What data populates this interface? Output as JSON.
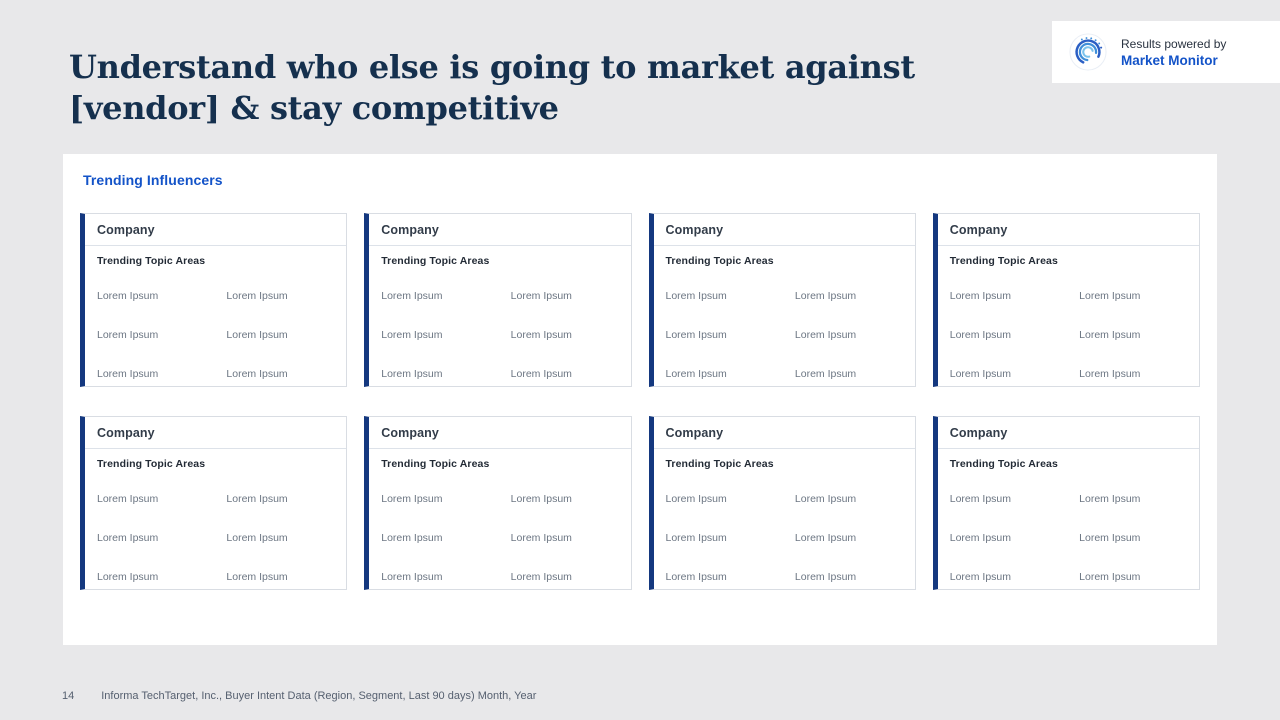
{
  "slide": {
    "title_lines": [
      "Understand who else is going to market against",
      "[vendor] & stay competitive"
    ],
    "footer": {
      "page_number": "14",
      "source": "Informa TechTarget, Inc., Buyer Intent Data (Region, Segment, Last 90 days) Month, Year"
    }
  },
  "badge": {
    "prefix": "Results powered by",
    "brand": "Market Monitor",
    "logo_icon": "market-monitor-orbit-icon"
  },
  "panel": {
    "heading": "Trending Influencers",
    "cards": [
      {
        "company": "Company",
        "section_label": "Trending Topic Areas",
        "topics": [
          "Lorem Ipsum",
          "Lorem Ipsum",
          "Lorem Ipsum",
          "Lorem Ipsum",
          "Lorem Ipsum",
          "Lorem Ipsum"
        ]
      },
      {
        "company": "Company",
        "section_label": "Trending Topic Areas",
        "topics": [
          "Lorem Ipsum",
          "Lorem Ipsum",
          "Lorem Ipsum",
          "Lorem Ipsum",
          "Lorem Ipsum",
          "Lorem Ipsum"
        ]
      },
      {
        "company": "Company",
        "section_label": "Trending Topic Areas",
        "topics": [
          "Lorem Ipsum",
          "Lorem Ipsum",
          "Lorem Ipsum",
          "Lorem Ipsum",
          "Lorem Ipsum",
          "Lorem Ipsum"
        ]
      },
      {
        "company": "Company",
        "section_label": "Trending Topic Areas",
        "topics": [
          "Lorem Ipsum",
          "Lorem Ipsum",
          "Lorem Ipsum",
          "Lorem Ipsum",
          "Lorem Ipsum",
          "Lorem Ipsum"
        ]
      },
      {
        "company": "Company",
        "section_label": "Trending Topic Areas",
        "topics": [
          "Lorem Ipsum",
          "Lorem Ipsum",
          "Lorem Ipsum",
          "Lorem Ipsum",
          "Lorem Ipsum",
          "Lorem Ipsum"
        ]
      },
      {
        "company": "Company",
        "section_label": "Trending Topic Areas",
        "topics": [
          "Lorem Ipsum",
          "Lorem Ipsum",
          "Lorem Ipsum",
          "Lorem Ipsum",
          "Lorem Ipsum",
          "Lorem Ipsum"
        ]
      },
      {
        "company": "Company",
        "section_label": "Trending Topic Areas",
        "topics": [
          "Lorem Ipsum",
          "Lorem Ipsum",
          "Lorem Ipsum",
          "Lorem Ipsum",
          "Lorem Ipsum",
          "Lorem Ipsum"
        ]
      },
      {
        "company": "Company",
        "section_label": "Trending Topic Areas",
        "topics": [
          "Lorem Ipsum",
          "Lorem Ipsum",
          "Lorem Ipsum",
          "Lorem Ipsum",
          "Lorem Ipsum",
          "Lorem Ipsum"
        ]
      }
    ]
  },
  "colors": {
    "background": "#e8e8ea",
    "panel_white": "#ffffff",
    "title_navy": "#15304e",
    "heading_blue": "#1353c8",
    "accent_navy": "#14387f",
    "card_border": "#d9dde3",
    "topic_gray": "#6c7683",
    "footer_gray": "#566070"
  }
}
